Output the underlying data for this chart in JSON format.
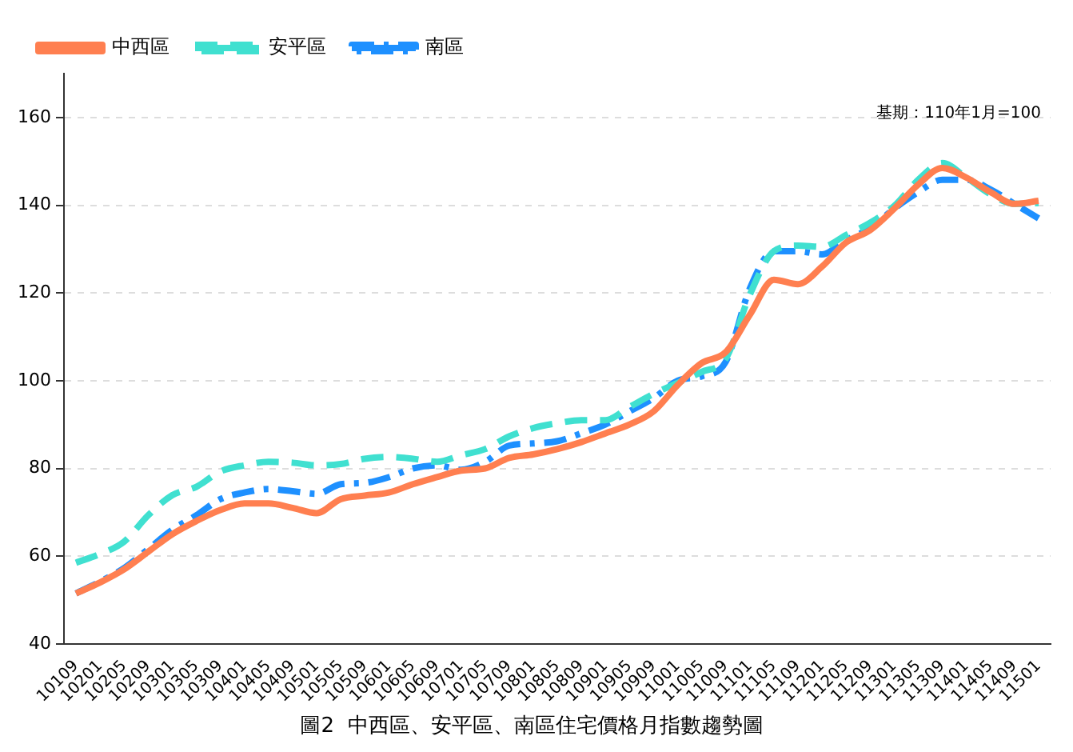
{
  "chart_data": {
    "type": "line",
    "title": "圖2  中西區、安平區、南區住宅價格月指數趨勢圖",
    "annotations": [
      "基期：110年1月=100"
    ],
    "categories": [
      "10109",
      "10201",
      "10205",
      "10209",
      "10301",
      "10305",
      "10309",
      "10401",
      "10405",
      "10409",
      "10501",
      "10505",
      "10509",
      "10601",
      "10605",
      "10609",
      "10701",
      "10705",
      "10709",
      "10801",
      "10805",
      "10809",
      "10901",
      "10905",
      "10909",
      "11001",
      "11005",
      "11009",
      "11101",
      "11105",
      "11109",
      "11201",
      "11205",
      "11209",
      "11301",
      "11305",
      "11309",
      "11401",
      "11405",
      "11409",
      "11501"
    ],
    "series": [
      {
        "name": "中西區",
        "color": "#ff7f50",
        "line_style": "solid",
        "values": [
          51.5,
          54,
          57,
          61,
          65,
          68,
          70.5,
          72,
          72,
          71,
          69.8,
          73,
          73.8,
          74.5,
          76.4,
          78,
          79.5,
          80,
          82.4,
          83.2,
          84.4,
          86,
          88,
          90,
          93,
          99,
          104,
          106.5,
          115,
          123,
          122,
          126,
          131.5,
          134.3,
          139.2,
          144.7,
          148.5,
          146.3,
          143,
          140.3,
          141
        ]
      },
      {
        "name": "安平區",
        "color": "#40e0d0",
        "line_style": "dashed",
        "values": [
          58.5,
          60.5,
          63.3,
          69.3,
          73.9,
          75.8,
          79.3,
          80.7,
          81.5,
          81.3,
          80.7,
          81,
          82.2,
          82.6,
          82.2,
          81.5,
          83,
          84.4,
          87.3,
          89.2,
          90.3,
          91,
          91,
          94,
          97,
          99.5,
          102,
          105,
          119.6,
          129.5,
          130.8,
          130.5,
          133.2,
          136,
          139.8,
          145.8,
          149.6,
          146.3,
          142.5,
          140.3,
          140.5
        ]
      },
      {
        "name": "南區",
        "color": "#1e90ff",
        "line_style": "dashdot",
        "values": [
          51.5,
          54.2,
          57.3,
          61.6,
          66,
          69.3,
          73,
          74.5,
          75.3,
          74.8,
          74.2,
          76.4,
          76.7,
          78,
          80,
          80.7,
          79.7,
          81.5,
          85.2,
          85.7,
          86.2,
          88,
          90,
          93,
          96,
          100,
          101,
          104.3,
          121,
          129.5,
          129.5,
          128.8,
          132,
          134.8,
          139.2,
          143,
          145.8,
          145.8,
          143.6,
          140.3,
          137
        ]
      }
    ],
    "ylim": [
      40,
      170
    ],
    "yticks": [
      40,
      60,
      80,
      100,
      120,
      140,
      160
    ],
    "grid": "y",
    "legend": "top left"
  }
}
